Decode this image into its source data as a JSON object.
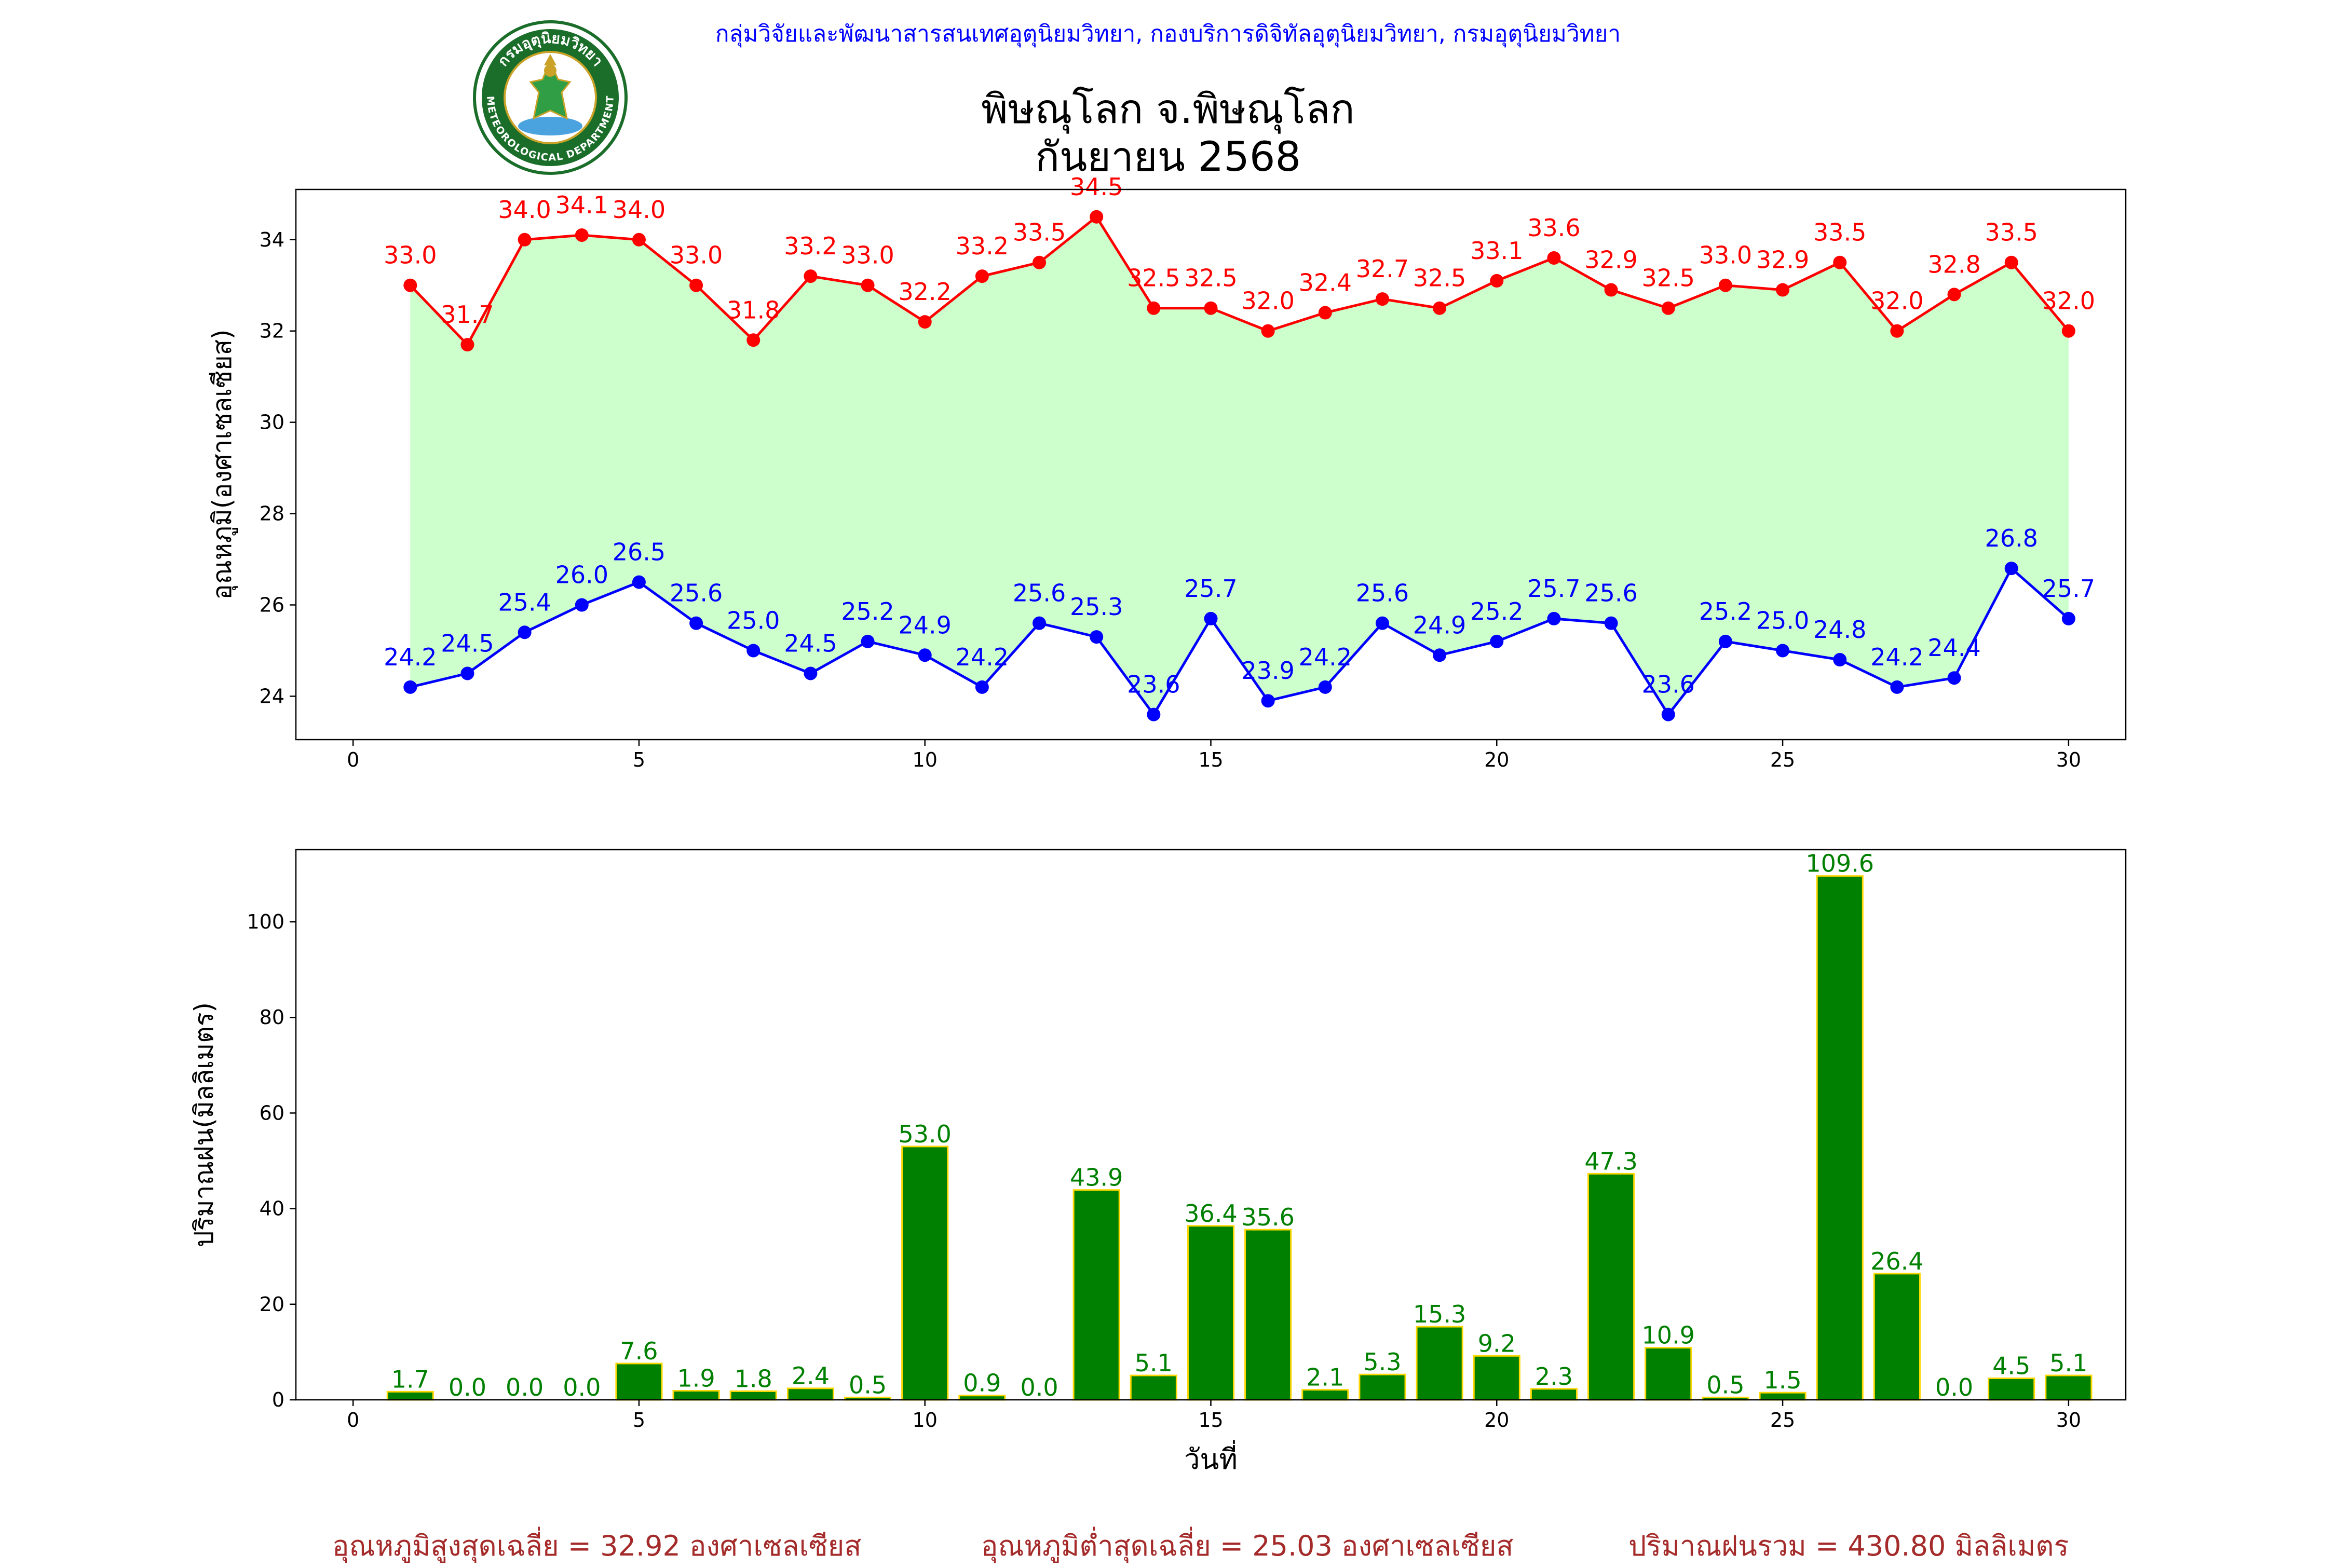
{
  "header": {
    "credit": "กลุ่มวิจัยและพัฒนาสารสนเทศอุตุนิยมวิทยา, กองบริการดิจิทัลอุตุนิยมวิทยา, กรมอุตุนิยมวิทยา",
    "logo_text_top": "กรมอุตุนิยมวิทยา",
    "logo_text_bottom": "METEOROLOGICAL DEPARTMENT",
    "title_line1": "พิษณุโลก จ.พิษณุโลก",
    "title_line2": "กันยายน 2568"
  },
  "colors": {
    "max_temp": "#ff0000",
    "min_temp": "#0000ff",
    "fill": "#ccffcc",
    "rain_bar": "#008000",
    "rain_edge": "#ffd700",
    "footer": "#a52a2a",
    "credit": "#0000ff"
  },
  "chart_data": [
    {
      "type": "line",
      "ylabel": "อุณหภูมิ(องศาเซลเซียส)",
      "xlim": [
        -1,
        31
      ],
      "ylim": [
        23.05,
        35.1
      ],
      "xticks": [
        0,
        5,
        10,
        15,
        20,
        25,
        30
      ],
      "yticks": [
        24,
        26,
        28,
        30,
        32,
        34
      ],
      "x": [
        1,
        2,
        3,
        4,
        5,
        6,
        7,
        8,
        9,
        10,
        11,
        12,
        13,
        14,
        15,
        16,
        17,
        18,
        19,
        20,
        21,
        22,
        23,
        24,
        25,
        26,
        27,
        28,
        29,
        30
      ],
      "series": [
        {
          "key": "max",
          "values": [
            33.0,
            31.7,
            34.0,
            34.1,
            34.0,
            33.0,
            31.8,
            33.2,
            33.0,
            32.2,
            33.2,
            33.5,
            34.5,
            32.5,
            32.5,
            32.0,
            32.4,
            32.7,
            32.5,
            33.1,
            33.6,
            32.9,
            32.5,
            33.0,
            32.9,
            33.5,
            32.0,
            32.8,
            33.5,
            32.0
          ]
        },
        {
          "key": "min",
          "values": [
            24.2,
            24.5,
            25.4,
            26.0,
            26.5,
            25.6,
            25.0,
            24.5,
            25.2,
            24.9,
            24.2,
            25.6,
            25.3,
            23.6,
            25.7,
            23.9,
            24.2,
            25.6,
            24.9,
            25.2,
            25.7,
            25.6,
            23.6,
            25.2,
            25.0,
            24.8,
            24.2,
            24.4,
            26.8,
            25.7
          ]
        }
      ]
    },
    {
      "type": "bar",
      "ylabel": "ปริมาณฝน(มิลลิเมตร)",
      "xlabel": "วันที่",
      "xlim": [
        -1,
        31
      ],
      "ylim": [
        0,
        115.1
      ],
      "xticks": [
        0,
        5,
        10,
        15,
        20,
        25,
        30
      ],
      "yticks": [
        0,
        20,
        40,
        60,
        80,
        100
      ],
      "x": [
        1,
        2,
        3,
        4,
        5,
        6,
        7,
        8,
        9,
        10,
        11,
        12,
        13,
        14,
        15,
        16,
        17,
        18,
        19,
        20,
        21,
        22,
        23,
        24,
        25,
        26,
        27,
        28,
        29,
        30
      ],
      "values": [
        1.7,
        0.0,
        0.0,
        0.0,
        7.6,
        1.9,
        1.8,
        2.4,
        0.5,
        53.0,
        0.9,
        0.0,
        43.9,
        5.1,
        36.4,
        35.6,
        2.1,
        5.3,
        15.3,
        9.2,
        2.3,
        47.3,
        10.9,
        0.5,
        1.5,
        109.6,
        26.4,
        0.0,
        4.5,
        5.1
      ]
    }
  ],
  "footer": {
    "avg_max": "อุณหภูมิสูงสุดเฉลี่ย = 32.92 องศาเซลเซียส",
    "avg_min": "อุณหภูมิต่ำสุดเฉลี่ย = 25.03 องศาเซลเซียส",
    "total_rain": "ปริมาณฝนรวม = 430.80 มิลลิเมตร"
  }
}
